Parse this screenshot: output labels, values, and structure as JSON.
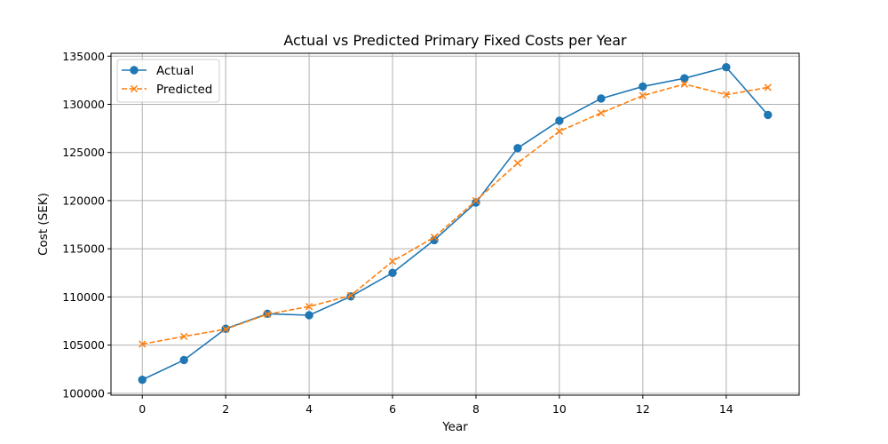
{
  "chart_data": {
    "type": "line",
    "title": "Actual vs Predicted Primary Fixed Costs per Year",
    "xlabel": "Year",
    "ylabel": "Cost (SEK)",
    "x": [
      0,
      1,
      2,
      3,
      4,
      5,
      6,
      7,
      8,
      9,
      10,
      11,
      12,
      13,
      14,
      15
    ],
    "xlim": [
      -0.75,
      15.75
    ],
    "ylim": [
      99800,
      135300
    ],
    "xticks": [
      0,
      2,
      4,
      6,
      8,
      10,
      12,
      14
    ],
    "yticks": [
      100000,
      105000,
      110000,
      115000,
      120000,
      125000,
      130000,
      135000
    ],
    "grid": true,
    "legend_position": "top-left",
    "series": [
      {
        "name": "Actual",
        "color": "#1f77b4",
        "marker": "circle",
        "linestyle": "solid",
        "values": [
          101400,
          103450,
          106700,
          108250,
          108100,
          110050,
          112500,
          115900,
          119800,
          125450,
          128300,
          130600,
          131850,
          132700,
          133850,
          128900
        ]
      },
      {
        "name": "Predicted",
        "color": "#ff7f0e",
        "marker": "x",
        "linestyle": "dashed",
        "values": [
          105100,
          105900,
          106650,
          108200,
          109000,
          110150,
          113700,
          116200,
          120000,
          123900,
          127200,
          129100,
          130900,
          132100,
          131000,
          131750
        ]
      }
    ]
  }
}
